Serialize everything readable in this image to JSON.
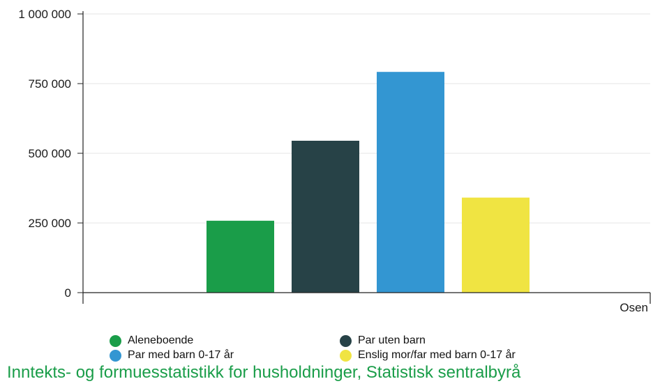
{
  "chart_data": {
    "type": "bar",
    "categories": [
      "Osen"
    ],
    "series": [
      {
        "name": "Aleneboende",
        "values": [
          258000
        ],
        "color": "#1a9d49"
      },
      {
        "name": "Par uten barn",
        "values": [
          545000
        ],
        "color": "#274247"
      },
      {
        "name": "Par med barn 0-17 år",
        "values": [
          792000
        ],
        "color": "#3396d2"
      },
      {
        "name": "Enslig mor/far med barn 0-17 år",
        "values": [
          341000
        ],
        "color": "#f0e442"
      }
    ],
    "ylim": [
      0,
      1000000
    ],
    "yticks": [
      0,
      250000,
      500000,
      750000,
      1000000
    ],
    "ytick_labels": [
      "0",
      "250 000",
      "500 000",
      "750 000",
      "1 000 000"
    ],
    "grid": true,
    "legend_position": "bottom"
  },
  "source": "Inntekts- og formuesstatistikk for husholdninger, Statistisk sentralbyrå"
}
